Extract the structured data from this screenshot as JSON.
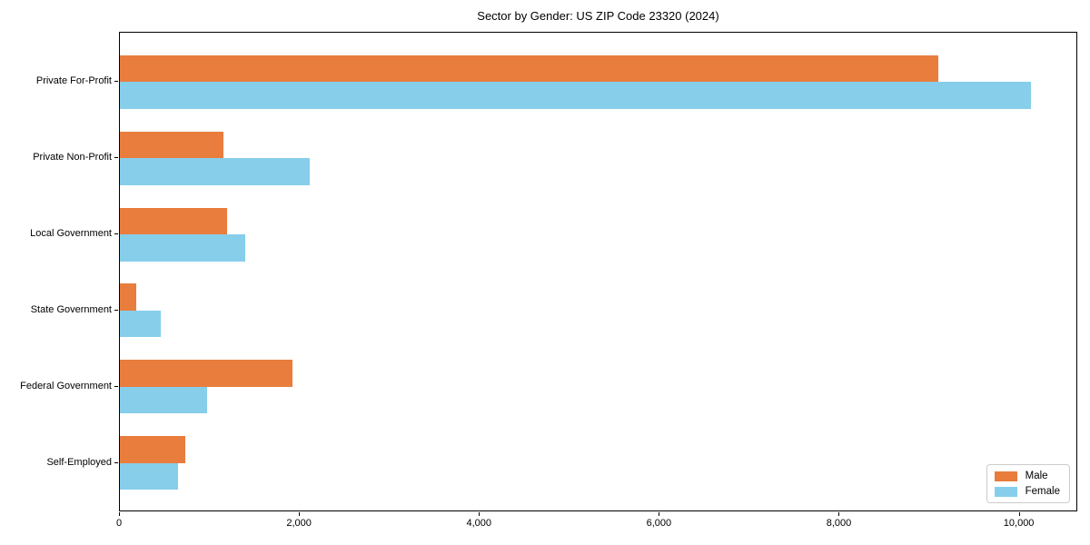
{
  "chart_data": {
    "type": "bar",
    "orientation": "horizontal",
    "title": "Sector by Gender: US ZIP Code 23320 (2024)",
    "categories": [
      "Private For-Profit",
      "Private Non-Profit",
      "Local Government",
      "State Government",
      "Federal Government",
      "Self-Employed"
    ],
    "series": [
      {
        "name": "Male",
        "color": "#E87D3E",
        "values": [
          9100,
          1150,
          1190,
          180,
          1920,
          730
        ]
      },
      {
        "name": "Female",
        "color": "#87CEEB",
        "values": [
          10130,
          2110,
          1390,
          450,
          970,
          650
        ]
      }
    ],
    "xlabel": "",
    "ylabel": "",
    "xlim": [
      0,
      10650
    ],
    "xticks": [
      0,
      2000,
      4000,
      6000,
      8000,
      10000
    ],
    "xtick_labels": [
      "0",
      "2,000",
      "4,000",
      "6,000",
      "8,000",
      "10,000"
    ],
    "grid": false,
    "legend": {
      "position": "lower right",
      "entries": [
        "Male",
        "Female"
      ]
    },
    "colors": {
      "male": "#E87D3E",
      "female": "#87CEEB",
      "spine": "#000000",
      "legend_border": "#cccccc",
      "background": "#ffffff",
      "text": "#000000"
    }
  }
}
